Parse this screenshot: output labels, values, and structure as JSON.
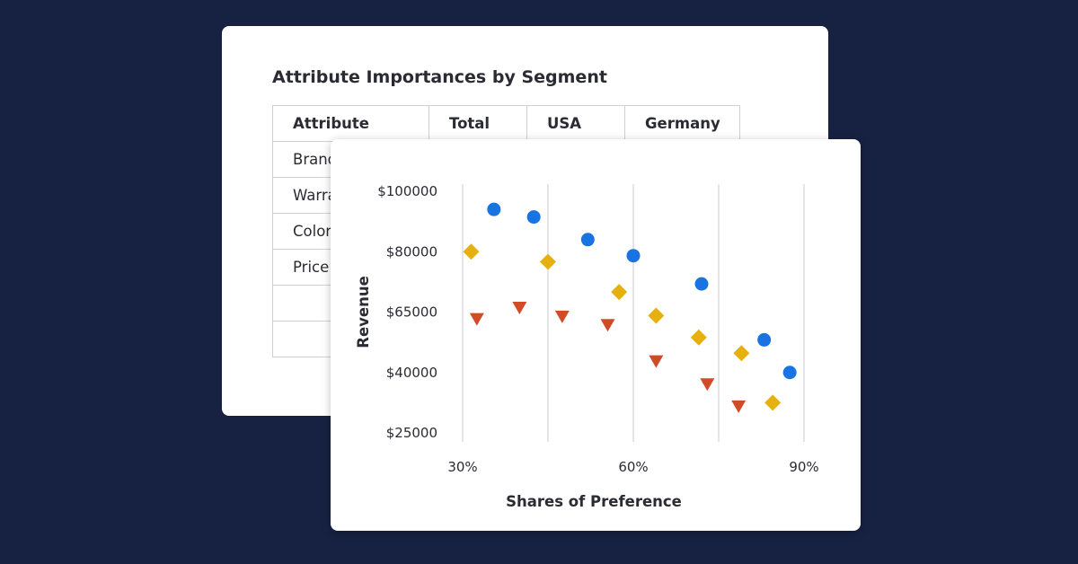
{
  "table": {
    "title": "Attribute Importances by Segment",
    "headers": [
      "Attribute",
      "Total",
      "USA",
      "Germany"
    ],
    "rows": [
      [
        "Brand",
        "",
        "",
        ""
      ],
      [
        "Warranty",
        "",
        "",
        ""
      ],
      [
        "Color",
        "",
        "",
        ""
      ],
      [
        "Price",
        "",
        "",
        ""
      ],
      [
        "",
        "",
        "",
        ""
      ],
      [
        "",
        "",
        "",
        ""
      ]
    ]
  },
  "chart_data": {
    "type": "scatter",
    "title": "",
    "xlabel": "Shares of Preference",
    "ylabel": "Revenue",
    "xlim": [
      30,
      90
    ],
    "ylim": [
      25000,
      100000
    ],
    "x_ticks": [
      30,
      60,
      90
    ],
    "x_tick_labels": [
      "30%",
      "60%",
      "90%"
    ],
    "y_ticks": [
      25000,
      40000,
      65000,
      80000,
      100000
    ],
    "y_tick_labels": [
      "$25000",
      "$40000",
      "$65000",
      "$80000",
      "$100000"
    ],
    "vertical_gridlines": [
      30,
      45,
      60,
      75,
      90
    ],
    "grid": true,
    "series": [
      {
        "marker": "circle",
        "color": "#1a73e3",
        "x": [
          35.5,
          42.5,
          52.0,
          60.0,
          72.0,
          83.0,
          87.5
        ],
        "y": [
          94000,
          91500,
          84000,
          79000,
          72000,
          53500,
          40000
        ]
      },
      {
        "marker": "diamond",
        "color": "#e6b10e",
        "x": [
          31.5,
          45.0,
          57.5,
          64.0,
          71.5,
          79.0,
          84.5
        ],
        "y": [
          80000,
          77500,
          70000,
          63500,
          54500,
          48000,
          32500
        ]
      },
      {
        "marker": "triangle-down",
        "color": "#d24b27",
        "x": [
          32.5,
          40.0,
          47.5,
          55.5,
          64.0,
          73.0,
          78.5
        ],
        "y": [
          62000,
          66000,
          63000,
          59500,
          44500,
          37000,
          31500
        ]
      }
    ]
  }
}
